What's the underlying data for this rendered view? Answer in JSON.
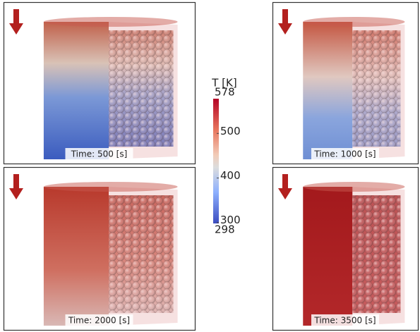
{
  "panels": [
    {
      "label": "Time: 500 [s]"
    },
    {
      "label": "Time: 1000 [s]"
    },
    {
      "label": "Time: 2000 [s]"
    },
    {
      "label": "Time: 3500 [s]"
    }
  ],
  "colorbar": {
    "title": "T [K]",
    "range": [
      298,
      578
    ],
    "ticks": [
      500,
      400,
      300
    ]
  }
}
